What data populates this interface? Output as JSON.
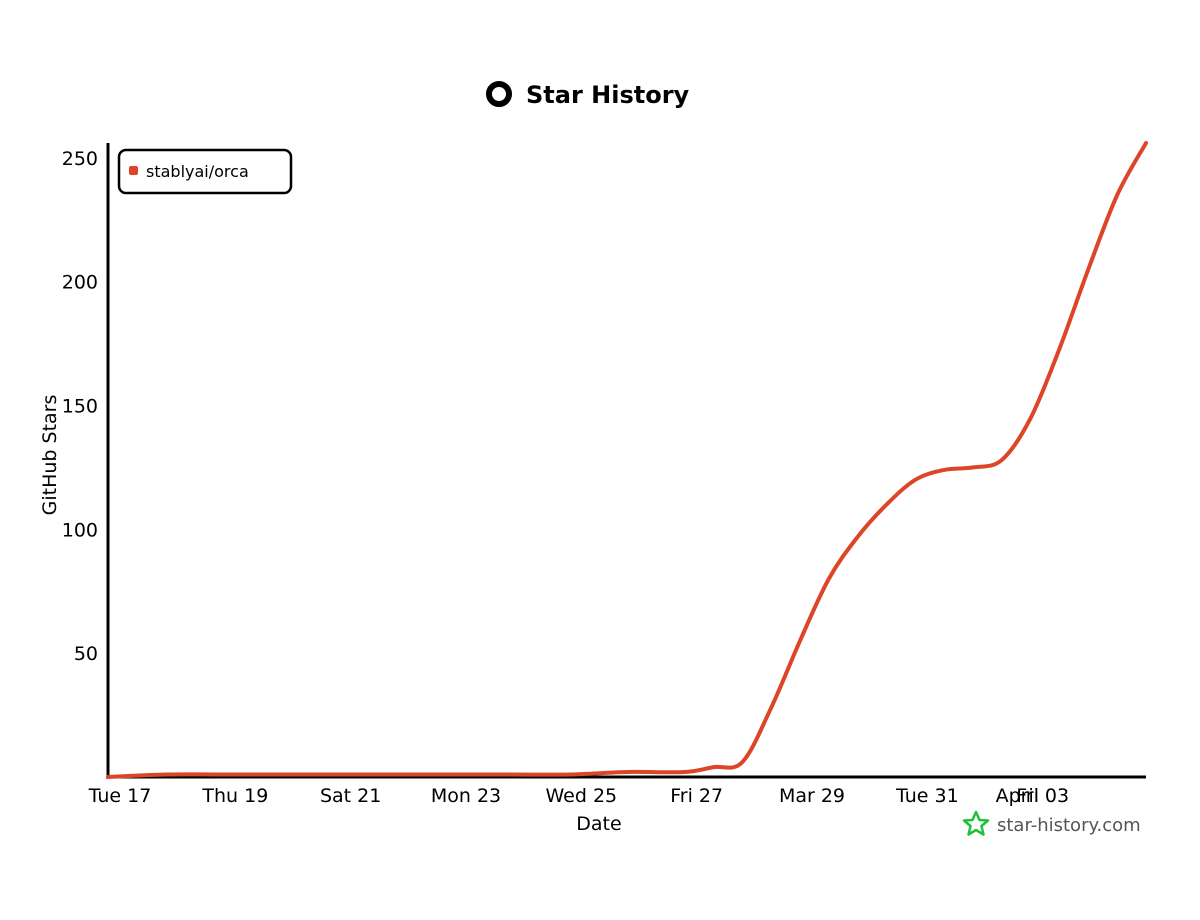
{
  "chart_data": {
    "type": "line",
    "title": "Star History",
    "xlabel": "Date",
    "ylabel": "GitHub Stars",
    "x_ticks": [
      "Tue 17",
      "Thu 19",
      "Sat 21",
      "Mon 23",
      "Wed 25",
      "Fri 27",
      "Mar 29",
      "Tue 31",
      "April",
      "Fri 03"
    ],
    "y_ticks": [
      50,
      100,
      150,
      200,
      250
    ],
    "ylim": [
      0,
      256
    ],
    "xlim": [
      "2023-03-17",
      "2023-04-04"
    ],
    "legend": "top-left",
    "grid": false,
    "series": [
      {
        "name": "stablyai/orca",
        "color": "#dd4528",
        "x": [
          "2023-03-17",
          "2023-03-18",
          "2023-03-19",
          "2023-03-20",
          "2023-03-21",
          "2023-03-22",
          "2023-03-23",
          "2023-03-24",
          "2023-03-25",
          "2023-03-26",
          "2023-03-27",
          "2023-03-27 12:00",
          "2023-03-28",
          "2023-03-28 12:00",
          "2023-03-29",
          "2023-03-29 12:00",
          "2023-03-30",
          "2023-03-30 12:00",
          "2023-03-31",
          "2023-03-31 12:00",
          "2023-04-01",
          "2023-04-01 12:00",
          "2023-04-02",
          "2023-04-02 12:00",
          "2023-04-03",
          "2023-04-03 12:00",
          "2023-04-04"
        ],
        "values": [
          0,
          1,
          1,
          1,
          1,
          1,
          1,
          1,
          1,
          2,
          2,
          4,
          6,
          28,
          55,
          80,
          97,
          110,
          120,
          124,
          125,
          128,
          145,
          173,
          205,
          235,
          256
        ]
      }
    ]
  },
  "brand": {
    "text": "star-history.com",
    "color": "#22c03a"
  },
  "colors": {
    "axis": "#000000",
    "line": "#dd4528"
  }
}
